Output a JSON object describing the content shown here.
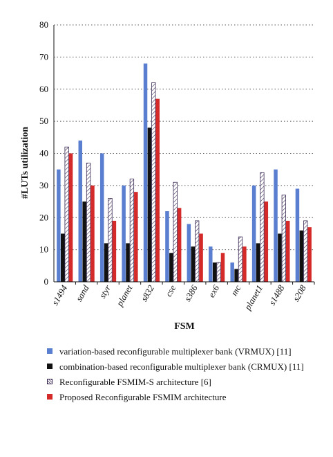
{
  "chart_data": {
    "type": "bar",
    "title": "",
    "xlabel": "FSM",
    "ylabel": "#LUTs utilization",
    "ylim": [
      0,
      80
    ],
    "yticks": [
      0,
      10,
      20,
      30,
      40,
      50,
      60,
      70,
      80
    ],
    "grid": "horizontal dotted",
    "legend_position": "bottom",
    "categories": [
      "s1494",
      "sand",
      "styr",
      "planet",
      "s832",
      "cse",
      "s386",
      "ex6",
      "mc",
      "planet1",
      "s1488",
      "s208"
    ],
    "series": [
      {
        "name": "variation-based reconfigurable multiplexer bank (VRMUX) [11]",
        "color": "#5b7fd0",
        "pattern": "solid",
        "values": [
          35,
          44,
          40,
          30,
          68,
          22,
          18,
          11,
          6,
          30,
          35,
          29
        ]
      },
      {
        "name": "combination-based reconfigurable multiplexer bank (CRMUX) [11]",
        "color": "#111111",
        "pattern": "solid",
        "values": [
          15,
          25,
          12,
          12,
          48,
          9,
          11,
          6,
          4,
          12,
          15,
          16
        ]
      },
      {
        "name": "Reconfigurable FSMIM-S architecture [6]",
        "color": "#ffffff",
        "pattern": "hatch",
        "values": [
          42,
          37,
          26,
          32,
          62,
          31,
          19,
          6,
          14,
          34,
          27,
          19
        ]
      },
      {
        "name": "Proposed Reconfigurable FSMIM architecture",
        "color": "#d42a2a",
        "pattern": "solid",
        "values": [
          40,
          30,
          19,
          28,
          57,
          23,
          15,
          9,
          11,
          25,
          19,
          17
        ]
      }
    ]
  }
}
